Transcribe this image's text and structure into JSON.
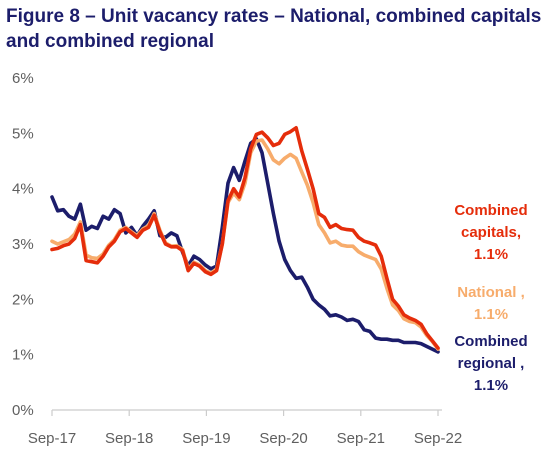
{
  "title": "Figure 8 – Unit vacancy rates – National, combined capitals and combined regional",
  "colors": {
    "capitals": "#e52d0b",
    "national": "#f7ac6c",
    "regional": "#1c1d6b",
    "axis": "#cccccc",
    "tick_text": "#5f5f5f"
  },
  "chart_data": {
    "type": "line",
    "title": "Figure 8 – Unit vacancy rates – National, combined capitals and combined regional",
    "xlabel": "",
    "ylabel": "",
    "ylim": [
      0,
      6
    ],
    "yticks": [
      {
        "value": 0,
        "label": "0%"
      },
      {
        "value": 1,
        "label": "1%"
      },
      {
        "value": 2,
        "label": "2%"
      },
      {
        "value": 3,
        "label": "3%"
      },
      {
        "value": 4,
        "label": "4%"
      },
      {
        "value": 5,
        "label": "5%"
      },
      {
        "value": 6,
        "label": "6%"
      }
    ],
    "xticks": [
      "Sep-17",
      "Sep-18",
      "Sep-19",
      "Sep-20",
      "Sep-21",
      "Sep-22"
    ],
    "x_start": "Sep-17",
    "x_end": "Sep-22",
    "grid": false,
    "legend": "direct labels at right",
    "series": [
      {
        "key": "capitals",
        "label_lines": [
          "Combined",
          "capitals,",
          "1.1%"
        ],
        "values": [
          2.9,
          2.92,
          2.97,
          3.0,
          3.1,
          3.35,
          2.7,
          2.68,
          2.66,
          2.78,
          2.95,
          3.05,
          3.22,
          3.28,
          3.2,
          3.12,
          3.25,
          3.3,
          3.52,
          3.22,
          3.0,
          2.95,
          2.95,
          2.88,
          2.52,
          2.65,
          2.6,
          2.5,
          2.45,
          2.52,
          3.0,
          3.78,
          4.0,
          3.85,
          4.2,
          4.72,
          4.98,
          5.02,
          4.92,
          4.78,
          4.82,
          4.98,
          5.03,
          5.1,
          4.68,
          4.35,
          4.0,
          3.55,
          3.48,
          3.3,
          3.35,
          3.28,
          3.26,
          3.25,
          3.12,
          3.05,
          3.02,
          2.98,
          2.78,
          2.38,
          2.0,
          1.88,
          1.72,
          1.66,
          1.62,
          1.55,
          1.38,
          1.25,
          1.12
        ]
      },
      {
        "key": "national",
        "label_lines": [
          "National ,",
          "1.1%"
        ],
        "values": [
          3.05,
          3.0,
          3.04,
          3.08,
          3.18,
          3.4,
          2.8,
          2.75,
          2.74,
          2.82,
          2.98,
          3.08,
          3.25,
          3.3,
          3.22,
          3.15,
          3.27,
          3.33,
          3.55,
          3.25,
          3.02,
          2.96,
          2.97,
          2.9,
          2.55,
          2.67,
          2.62,
          2.52,
          2.47,
          2.55,
          3.0,
          3.75,
          3.92,
          3.8,
          4.1,
          4.65,
          4.86,
          4.88,
          4.72,
          4.52,
          4.45,
          4.55,
          4.62,
          4.55,
          4.3,
          4.06,
          3.75,
          3.35,
          3.2,
          3.02,
          3.05,
          2.98,
          2.96,
          2.96,
          2.86,
          2.8,
          2.76,
          2.72,
          2.55,
          2.2,
          1.9,
          1.8,
          1.65,
          1.6,
          1.58,
          1.5,
          1.35,
          1.24,
          1.1
        ]
      },
      {
        "key": "regional",
        "label_lines": [
          "Combined",
          "regional ,",
          "1.1%"
        ],
        "values": [
          3.85,
          3.6,
          3.62,
          3.5,
          3.45,
          3.72,
          3.25,
          3.32,
          3.28,
          3.5,
          3.45,
          3.62,
          3.55,
          3.2,
          3.3,
          3.15,
          3.32,
          3.45,
          3.6,
          3.15,
          3.12,
          3.2,
          3.15,
          2.85,
          2.6,
          2.78,
          2.72,
          2.62,
          2.55,
          2.6,
          3.3,
          4.1,
          4.38,
          4.15,
          4.5,
          4.82,
          4.9,
          4.65,
          4.1,
          3.55,
          3.05,
          2.72,
          2.52,
          2.38,
          2.4,
          2.22,
          2.0,
          1.9,
          1.82,
          1.7,
          1.72,
          1.68,
          1.62,
          1.64,
          1.6,
          1.45,
          1.42,
          1.3,
          1.28,
          1.28,
          1.26,
          1.26,
          1.22,
          1.22,
          1.22,
          1.2,
          1.15,
          1.1,
          1.05
        ]
      }
    ]
  }
}
